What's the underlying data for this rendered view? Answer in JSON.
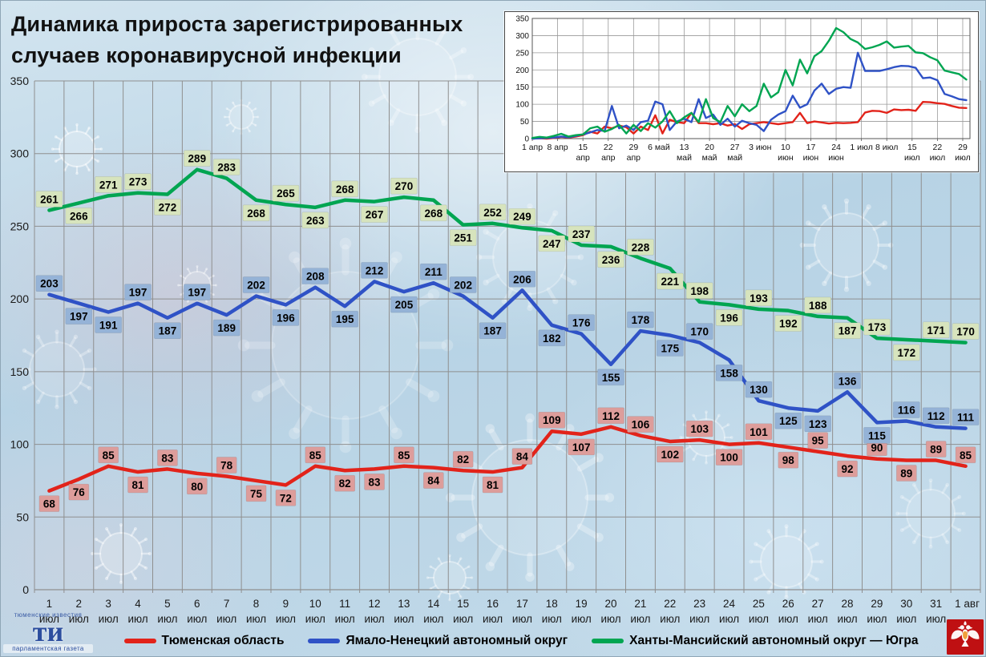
{
  "page": {
    "title_line1": "Динамика прироста зарегистрированных",
    "title_line2": "случаев коронавирусной инфекции"
  },
  "colors": {
    "red": "#e2231a",
    "blue": "#2f52c6",
    "green": "#00a551",
    "red_label_bg": "#dd9d9b",
    "blue_label_bg": "#95b3d7",
    "green_label_bg": "#d7e4bd",
    "grid": "#8f8f8f",
    "axis_text": "#1a1a1a"
  },
  "legend": {
    "items": [
      {
        "label": "Тюменская область",
        "color": "#e2231a"
      },
      {
        "label": "Ямало-Ненецкий автономный округ",
        "color": "#2f52c6"
      },
      {
        "label": "Ханты-Мансийский автономный округ — Югра",
        "color": "#00a551"
      }
    ]
  },
  "logos": {
    "left_top": "тюменские известия",
    "left_big": "ти",
    "left_bottom": "парламентская газета"
  },
  "chart_data": [
    {
      "id": "main",
      "type": "line",
      "title": "Динамика прироста зарегистрированных случаев коронавирусной инфекции",
      "xlabel": "",
      "ylabel": "",
      "ylim": [
        0,
        350
      ],
      "ytick_step": 50,
      "grid": true,
      "legend_position": "bottom",
      "point_labels": true,
      "x_labels": [
        "1 июл",
        "2 июл",
        "3 июл",
        "4 июл",
        "5 июл",
        "6 июл",
        "7 июл",
        "8 июл",
        "9 июл",
        "10 июл",
        "11 июл",
        "12 июл",
        "13 июл",
        "14 июл",
        "15 июл",
        "16 июл",
        "17 июл",
        "18 июл",
        "19 июл",
        "20 июл",
        "21 июл",
        "22 июл",
        "23 июл",
        "24 июл",
        "25 июл",
        "26 июл",
        "27 июл",
        "28 июл",
        "29 июл",
        "30 июл",
        "31 июл",
        "1 авг"
      ],
      "series": [
        {
          "name": "Тюменская область",
          "color": "#e2231a",
          "label_bg": "#dd9d9b",
          "values": [
            68,
            76,
            85,
            81,
            83,
            80,
            78,
            75,
            72,
            85,
            82,
            83,
            85,
            84,
            82,
            81,
            84,
            109,
            107,
            112,
            106,
            102,
            103,
            100,
            101,
            98,
            95,
            92,
            90,
            89,
            89,
            85
          ]
        },
        {
          "name": "Ямало-Ненецкий автономный округ",
          "color": "#2f52c6",
          "label_bg": "#95b3d7",
          "values": [
            203,
            197,
            191,
            197,
            187,
            197,
            189,
            202,
            196,
            208,
            195,
            212,
            205,
            211,
            202,
            187,
            206,
            182,
            176,
            155,
            178,
            175,
            170,
            158,
            130,
            125,
            123,
            136,
            115,
            116,
            112,
            111
          ]
        },
        {
          "name": "Ханты-Мансийский автономный округ — Югра",
          "color": "#00a551",
          "label_bg": "#d7e4bd",
          "values": [
            261,
            266,
            271,
            273,
            272,
            289,
            283,
            268,
            265,
            263,
            268,
            267,
            270,
            268,
            251,
            252,
            249,
            247,
            237,
            236,
            228,
            221,
            198,
            196,
            193,
            192,
            188,
            187,
            173,
            172,
            171,
            170
          ]
        }
      ]
    },
    {
      "id": "inset-overview",
      "type": "line",
      "title": "",
      "ylim": [
        0,
        350
      ],
      "ytick_step": 50,
      "grid": true,
      "x_day_step": 2,
      "x_tick_days": [
        0,
        7,
        14,
        21,
        28,
        35,
        42,
        49,
        56,
        63,
        70,
        77,
        84,
        91,
        98,
        105,
        112,
        119
      ],
      "x_tick_labels": [
        "1 апр",
        "8 апр",
        "15 апр",
        "22 апр",
        "29 апр",
        "6 май",
        "13 май",
        "20 май",
        "27 май",
        "3 июн",
        "10 июн",
        "17 июн",
        "24 июн",
        "1 июл",
        "8 июл",
        "15 июл",
        "22 июл",
        "29 июл"
      ],
      "series": [
        {
          "name": "Тюменская область",
          "color": "#e2231a",
          "values": [
            0,
            1,
            0,
            2,
            5,
            3,
            6,
            10,
            20,
            15,
            35,
            30,
            38,
            33,
            15,
            35,
            25,
            68,
            15,
            55,
            48,
            45,
            75,
            45,
            45,
            42,
            45,
            38,
            42,
            28,
            42,
            45,
            48,
            45,
            42,
            45,
            48,
            75,
            45,
            50,
            47,
            44,
            46,
            45,
            46,
            48,
            76,
            81,
            80,
            75,
            85,
            83,
            84,
            81,
            107,
            106,
            103,
            101,
            95,
            90,
            89
          ]
        },
        {
          "name": "Ямало-Ненецкий автономный округ",
          "color": "#2f52c6",
          "values": [
            0,
            1,
            2,
            3,
            6,
            4,
            8,
            12,
            18,
            25,
            22,
            95,
            30,
            38,
            25,
            48,
            52,
            108,
            100,
            25,
            50,
            58,
            48,
            115,
            60,
            70,
            40,
            58,
            35,
            52,
            45,
            40,
            22,
            55,
            70,
            80,
            125,
            90,
            100,
            140,
            160,
            130,
            145,
            150,
            148,
            250,
            197,
            197,
            197,
            202,
            208,
            212,
            211,
            206,
            176,
            178,
            170,
            130,
            123,
            115,
            112
          ]
        },
        {
          "name": "Ханты-Мансийский автономный округ — Югра",
          "color": "#00a551",
          "values": [
            2,
            5,
            3,
            8,
            14,
            6,
            10,
            12,
            30,
            35,
            20,
            28,
            40,
            15,
            40,
            22,
            45,
            32,
            50,
            80,
            45,
            62,
            75,
            48,
            115,
            60,
            48,
            95,
            65,
            100,
            80,
            95,
            160,
            120,
            135,
            200,
            155,
            230,
            190,
            240,
            255,
            285,
            322,
            310,
            290,
            280,
            261,
            266,
            273,
            283,
            265,
            268,
            270,
            251,
            249,
            237,
            228,
            198,
            193,
            188,
            172
          ]
        }
      ]
    }
  ]
}
